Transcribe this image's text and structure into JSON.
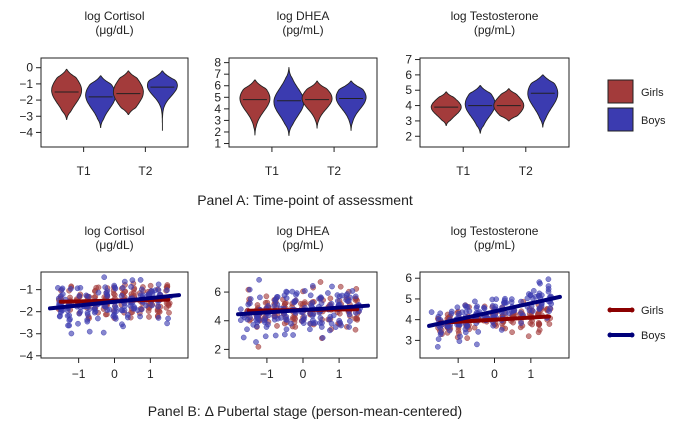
{
  "colors": {
    "girls": "#a33b3b",
    "boys": "#3b3bb0",
    "girls_line": "#8b0000",
    "boys_line": "#00007a",
    "axis": "#222222"
  },
  "panel_a": {
    "caption": "Panel A: Time-point of assessment",
    "legend": [
      {
        "label": "Girls",
        "color": "#a33b3b"
      },
      {
        "label": "Boys",
        "color": "#3b3bb0"
      }
    ]
  },
  "panel_b": {
    "caption": "Panel B: Δ Pubertal stage (person-mean-centered)",
    "legend": [
      {
        "label": "Girls",
        "color": "#8b0000"
      },
      {
        "label": "Boys",
        "color": "#00007a"
      }
    ]
  },
  "chart_data": [
    {
      "type": "violin",
      "title": [
        "log Cortisol",
        "(μg/dL)"
      ],
      "categories": [
        "T1",
        "T2"
      ],
      "ylim": [
        -4.9,
        0.6
      ],
      "yticks": [
        0,
        -1,
        -2,
        -3,
        -4
      ],
      "series": [
        {
          "name": "Girls",
          "T1": {
            "median": -1.5,
            "q1": -2.0,
            "q3": -1.1,
            "min": -3.2,
            "max": -0.1,
            "mode": -1.4
          },
          "T2": {
            "median": -1.6,
            "q1": -2.0,
            "q3": -1.1,
            "min": -2.9,
            "max": -0.2,
            "mode": -1.5
          }
        },
        {
          "name": "Boys",
          "T1": {
            "median": -1.8,
            "q1": -2.2,
            "q3": -1.3,
            "min": -3.7,
            "max": -0.5,
            "mode": -1.7
          },
          "T2": {
            "median": -1.2,
            "q1": -1.6,
            "q3": -0.9,
            "min": -3.9,
            "max": -0.2,
            "mode": -1.1
          }
        }
      ]
    },
    {
      "type": "violin",
      "title": [
        "log DHEA",
        "(pg/mL)"
      ],
      "categories": [
        "T1",
        "T2"
      ],
      "ylim": [
        0.7,
        8.4
      ],
      "yticks": [
        8,
        7,
        6,
        5,
        4,
        3,
        2,
        1
      ],
      "series": [
        {
          "name": "Girls",
          "T1": {
            "median": 4.8,
            "q1": 4.2,
            "q3": 5.4,
            "min": 1.7,
            "max": 6.5,
            "mode": 4.9
          },
          "T2": {
            "median": 4.8,
            "q1": 4.3,
            "q3": 5.3,
            "min": 2.3,
            "max": 6.4,
            "mode": 4.9
          }
        },
        {
          "name": "Boys",
          "T1": {
            "median": 4.7,
            "q1": 4.0,
            "q3": 5.3,
            "min": 1.7,
            "max": 7.6,
            "mode": 4.6
          },
          "T2": {
            "median": 4.9,
            "q1": 4.3,
            "q3": 5.4,
            "min": 2.1,
            "max": 6.4,
            "mode": 5.0
          }
        }
      ]
    },
    {
      "type": "violin",
      "title": [
        "log Testosterone",
        "(pg/mL)"
      ],
      "categories": [
        "T1",
        "T2"
      ],
      "ylim": [
        1.3,
        7.1
      ],
      "yticks": [
        7,
        6,
        5,
        4,
        3,
        2
      ],
      "series": [
        {
          "name": "Girls",
          "T1": {
            "median": 3.9,
            "q1": 3.6,
            "q3": 4.2,
            "min": 2.7,
            "max": 4.9,
            "mode": 3.9
          },
          "T2": {
            "median": 4.0,
            "q1": 3.7,
            "q3": 4.4,
            "min": 3.0,
            "max": 5.1,
            "mode": 4.0
          }
        },
        {
          "name": "Boys",
          "T1": {
            "median": 4.0,
            "q1": 3.6,
            "q3": 4.5,
            "min": 2.2,
            "max": 5.3,
            "mode": 4.1
          },
          "T2": {
            "median": 4.8,
            "q1": 4.2,
            "q3": 5.2,
            "min": 2.6,
            "max": 6.0,
            "mode": 4.8
          }
        }
      ]
    },
    {
      "type": "scatter",
      "title": [
        "log Cortisol",
        "(μg/dL)"
      ],
      "xlim": [
        -2.05,
        2.05
      ],
      "xticks": [
        -1,
        0,
        1
      ],
      "ylim": [
        -4.1,
        -0.2
      ],
      "yticks": [
        -1,
        -2,
        -3,
        -4
      ],
      "n_points": 150,
      "series": [
        {
          "name": "Girls",
          "color": "#a33b3b",
          "trend": {
            "x": [
              -1.5,
              1.5
            ],
            "y": [
              -1.55,
              -1.45
            ]
          },
          "y_center": -1.5,
          "y_spread": 0.45,
          "slope": 0.03
        },
        {
          "name": "Boys",
          "color": "#3b3bb0",
          "trend": {
            "x": [
              -1.8,
              1.8
            ],
            "y": [
              -1.85,
              -1.25
            ]
          },
          "y_center": -1.55,
          "y_spread": 0.5,
          "slope": 0.17
        }
      ]
    },
    {
      "type": "scatter",
      "title": [
        "log DHEA",
        "(pg/mL)"
      ],
      "xlim": [
        -2.05,
        2.05
      ],
      "xticks": [
        -1,
        0,
        1
      ],
      "ylim": [
        1.4,
        7.4
      ],
      "yticks": [
        6,
        4,
        2
      ],
      "n_points": 160,
      "series": [
        {
          "name": "Girls",
          "color": "#a33b3b",
          "trend": {
            "x": [
              -1.5,
              1.5
            ],
            "y": [
              4.7,
              4.8
            ]
          },
          "y_center": 4.75,
          "y_spread": 0.7,
          "slope": 0.03
        },
        {
          "name": "Boys",
          "color": "#3b3bb0",
          "trend": {
            "x": [
              -1.8,
              1.8
            ],
            "y": [
              4.45,
              5.05
            ]
          },
          "y_center": 4.75,
          "y_spread": 0.8,
          "slope": 0.17
        }
      ]
    },
    {
      "type": "scatter",
      "title": [
        "log Testosterone",
        "(pg/mL)"
      ],
      "xlim": [
        -2.05,
        2.05
      ],
      "xticks": [
        -1,
        0,
        1
      ],
      "ylim": [
        2.15,
        6.3
      ],
      "yticks": [
        6,
        5,
        4,
        3
      ],
      "n_points": 150,
      "series": [
        {
          "name": "Girls",
          "color": "#a33b3b",
          "trend": {
            "x": [
              -1.5,
              1.5
            ],
            "y": [
              3.85,
              4.15
            ]
          },
          "y_center": 4.0,
          "y_spread": 0.35,
          "slope": 0.1
        },
        {
          "name": "Boys",
          "color": "#3b3bb0",
          "trend": {
            "x": [
              -1.8,
              1.8
            ],
            "y": [
              3.7,
              5.1
            ]
          },
          "y_center": 4.4,
          "y_spread": 0.45,
          "slope": 0.39
        }
      ]
    }
  ]
}
